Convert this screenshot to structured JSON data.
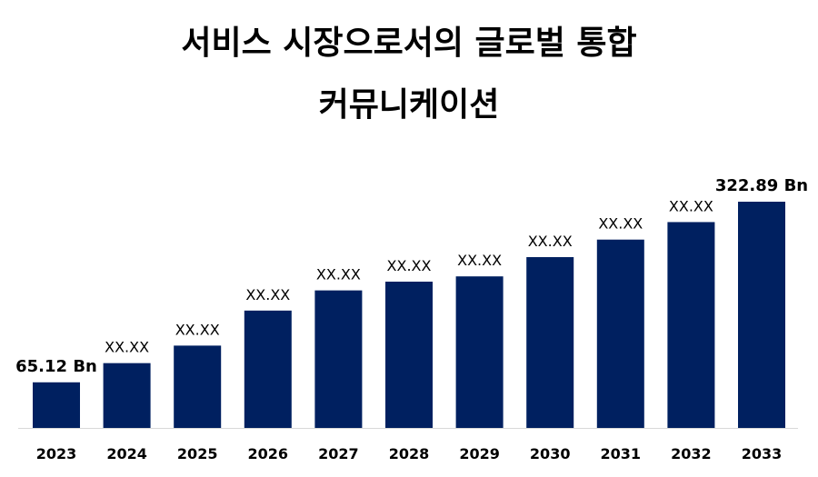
{
  "title_line1": "서비스 시장으로서의 글로벌 통합",
  "title_line2": "커뮤니케이션",
  "chart_data": {
    "type": "bar",
    "categories": [
      "2023",
      "2024",
      "2025",
      "2026",
      "2027",
      "2028",
      "2029",
      "2030",
      "2031",
      "2032",
      "2033"
    ],
    "values": [
      65.12,
      92.5,
      117.5,
      167.5,
      196.3,
      208.8,
      216.3,
      243.8,
      268.8,
      293.8,
      322.89
    ],
    "data_labels": [
      "65.12 Bn",
      "XX.XX",
      "XX.XX",
      "XX.XX",
      "XX.XX",
      "XX.XX",
      "XX.XX",
      "XX.XX",
      "XX.XX",
      "XX.XX",
      "322.89 Bn"
    ],
    "title": "서비스 시장으로서의 글로벌 통합 커뮤니케이션",
    "xlabel": "",
    "ylabel": "",
    "ylim": [
      0,
      322.89
    ],
    "grid": false,
    "legend": "none",
    "bar_color": "#002060",
    "axis_color": "#d9d9d9"
  }
}
